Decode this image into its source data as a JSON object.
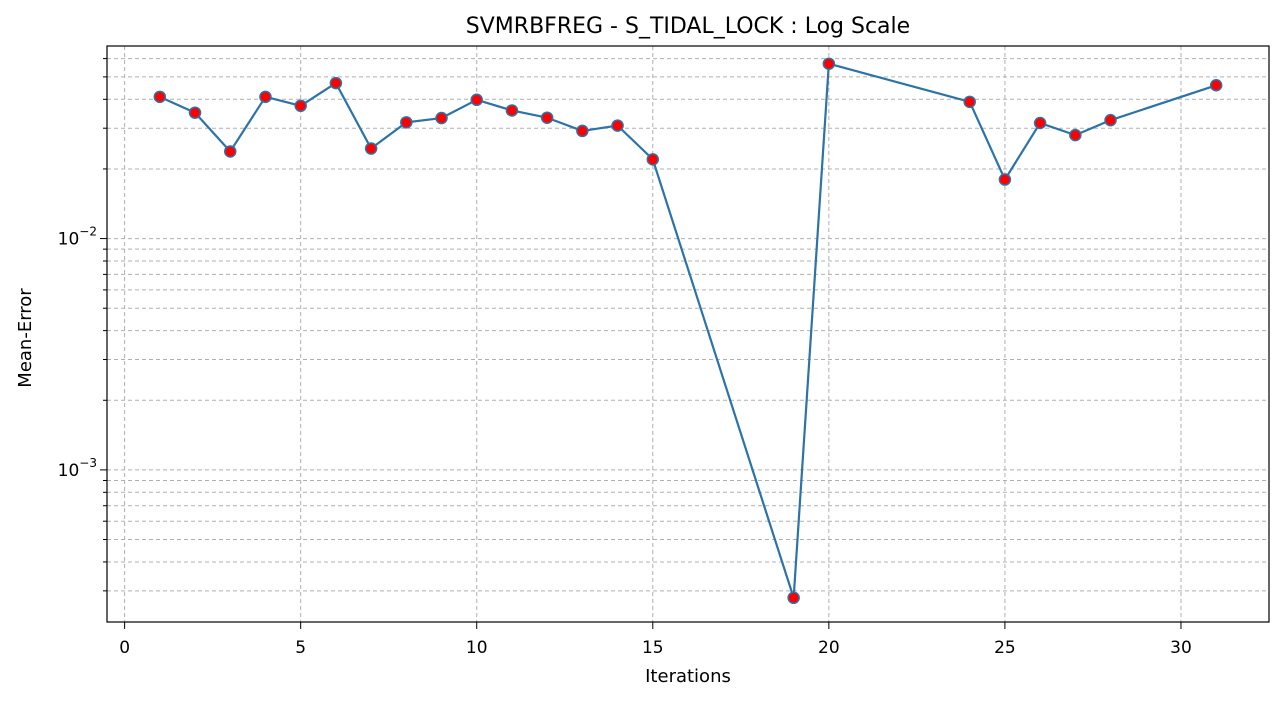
{
  "chart_data": {
    "type": "line",
    "title": "SVMRBFREG - S_TIDAL_LOCK : Log Scale",
    "xlabel": "Iterations",
    "ylabel": "Mean-Error",
    "yscale": "log",
    "xlim": [
      -0.5,
      32.5
    ],
    "ylim": [
      0.00022,
      0.068
    ],
    "xticks": [
      0,
      5,
      10,
      15,
      20,
      25,
      30
    ],
    "yticks_major": [
      {
        "value": 0.001,
        "base": "10",
        "exp": "−3"
      },
      {
        "value": 0.01,
        "base": "10",
        "exp": "−2"
      }
    ],
    "grid": true,
    "line_color": "#2b73a8",
    "marker_color": "#ff0000",
    "series": [
      {
        "x": [
          1,
          2,
          3,
          4,
          5,
          6,
          7,
          8,
          9,
          10,
          11,
          12,
          13,
          14,
          15,
          19,
          20,
          24,
          25,
          26,
          27,
          28,
          31
        ],
        "y": [
          0.041,
          0.035,
          0.0238,
          0.041,
          0.0375,
          0.047,
          0.0245,
          0.0318,
          0.0332,
          0.0398,
          0.0358,
          0.0333,
          0.0292,
          0.0308,
          0.022,
          0.00028,
          0.057,
          0.039,
          0.018,
          0.0316,
          0.028,
          0.0325,
          0.046
        ]
      }
    ]
  }
}
